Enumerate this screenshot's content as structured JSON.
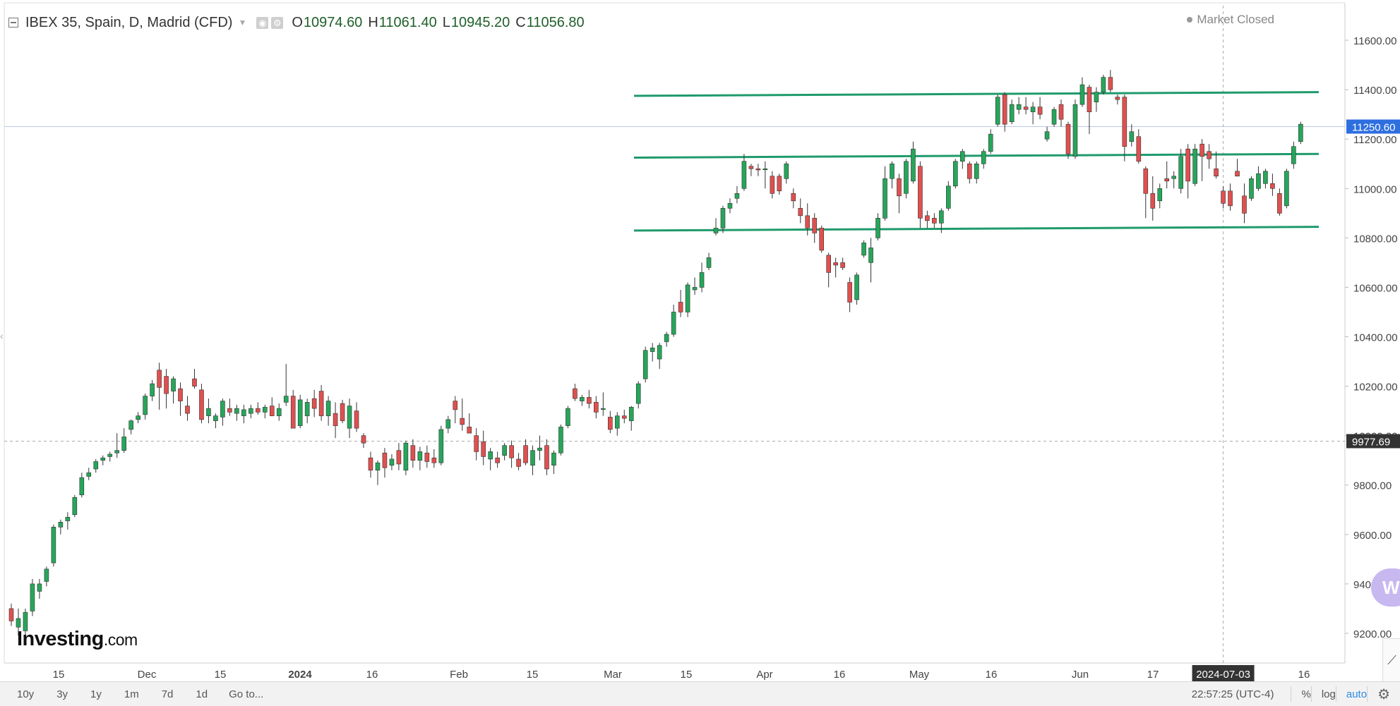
{
  "header": {
    "title": "IBEX 35, Spain, D, Madrid (CFD)",
    "ohlc": [
      {
        "key": "O",
        "value": "10974.60"
      },
      {
        "key": "H",
        "value": "11061.40"
      },
      {
        "key": "L",
        "value": "10945.20"
      },
      {
        "key": "C",
        "value": "11056.80"
      }
    ],
    "market_status": "Market Closed"
  },
  "colors": {
    "up": "#26a65b",
    "down": "#e0504f",
    "trend_line": "#1f9a6c",
    "last_price_label": "#2e6fe0",
    "crosshair_label": "#333333",
    "grid": "#eeeeee"
  },
  "chart_data": {
    "type": "candlestick",
    "ylim": [
      9080,
      11740
    ],
    "y_ticks": [
      "11600.00",
      "11400.00",
      "11200.00",
      "11000.00",
      "10800.00",
      "10600.00",
      "10400.00",
      "10200.00",
      "10000.00",
      "9800.00",
      "9600.00",
      "9400.00",
      "9200.00"
    ],
    "x_ticks": [
      "15",
      "Dec",
      "15",
      "2024",
      "16",
      "Feb",
      "15",
      "Mar",
      "15",
      "Apr",
      "16",
      "May",
      "16",
      "Jun",
      "17",
      "2024-07-03",
      "16"
    ],
    "last_price": "11250.60",
    "crosshair_price": "9977.69",
    "crosshair_date": "2024-07-03",
    "resistance_lines": [
      {
        "from": 11375,
        "to": 11390
      },
      {
        "from": 11125,
        "to": 11140
      },
      {
        "from": 10830,
        "to": 10845
      }
    ],
    "candles": [
      {
        "o": 9300,
        "h": 9320,
        "l": 9230,
        "c": 9250
      },
      {
        "o": 9225,
        "h": 9300,
        "l": 9190,
        "c": 9260
      },
      {
        "o": 9210,
        "h": 9300,
        "l": 9180,
        "c": 9285
      },
      {
        "o": 9290,
        "h": 9420,
        "l": 9270,
        "c": 9400
      },
      {
        "o": 9370,
        "h": 9420,
        "l": 9340,
        "c": 9400
      },
      {
        "o": 9410,
        "h": 9470,
        "l": 9390,
        "c": 9460
      },
      {
        "o": 9485,
        "h": 9640,
        "l": 9470,
        "c": 9630
      },
      {
        "o": 9630,
        "h": 9660,
        "l": 9600,
        "c": 9650
      },
      {
        "o": 9655,
        "h": 9690,
        "l": 9620,
        "c": 9670
      },
      {
        "o": 9680,
        "h": 9760,
        "l": 9670,
        "c": 9750
      },
      {
        "o": 9760,
        "h": 9850,
        "l": 9750,
        "c": 9830
      },
      {
        "o": 9835,
        "h": 9870,
        "l": 9820,
        "c": 9850
      },
      {
        "o": 9865,
        "h": 9905,
        "l": 9850,
        "c": 9895
      },
      {
        "o": 9900,
        "h": 9920,
        "l": 9880,
        "c": 9910
      },
      {
        "o": 9915,
        "h": 9935,
        "l": 9895,
        "c": 9925
      },
      {
        "o": 9930,
        "h": 10010,
        "l": 9910,
        "c": 9940
      },
      {
        "o": 9940,
        "h": 10030,
        "l": 9930,
        "c": 9995
      },
      {
        "o": 10025,
        "h": 10065,
        "l": 10005,
        "c": 10060
      },
      {
        "o": 10065,
        "h": 10095,
        "l": 10050,
        "c": 10080
      },
      {
        "o": 10085,
        "h": 10170,
        "l": 10065,
        "c": 10160
      },
      {
        "o": 10160,
        "h": 10225,
        "l": 10140,
        "c": 10210
      },
      {
        "o": 10265,
        "h": 10295,
        "l": 10105,
        "c": 10195
      },
      {
        "o": 10240,
        "h": 10270,
        "l": 10110,
        "c": 10170
      },
      {
        "o": 10180,
        "h": 10240,
        "l": 10130,
        "c": 10230
      },
      {
        "o": 10190,
        "h": 10215,
        "l": 10080,
        "c": 10140
      },
      {
        "o": 10120,
        "h": 10160,
        "l": 10060,
        "c": 10090
      },
      {
        "o": 10230,
        "h": 10270,
        "l": 10190,
        "c": 10200
      },
      {
        "o": 10185,
        "h": 10210,
        "l": 10050,
        "c": 10065
      },
      {
        "o": 10080,
        "h": 10150,
        "l": 10050,
        "c": 10110
      },
      {
        "o": 10060,
        "h": 10090,
        "l": 10030,
        "c": 10080
      },
      {
        "o": 10075,
        "h": 10150,
        "l": 10040,
        "c": 10140
      },
      {
        "o": 10110,
        "h": 10150,
        "l": 10080,
        "c": 10095
      },
      {
        "o": 10090,
        "h": 10125,
        "l": 10060,
        "c": 10110
      },
      {
        "o": 10080,
        "h": 10125,
        "l": 10050,
        "c": 10105
      },
      {
        "o": 10090,
        "h": 10125,
        "l": 10070,
        "c": 10110
      },
      {
        "o": 10110,
        "h": 10135,
        "l": 10085,
        "c": 10095
      },
      {
        "o": 10095,
        "h": 10125,
        "l": 10070,
        "c": 10115
      },
      {
        "o": 10120,
        "h": 10155,
        "l": 10080,
        "c": 10080
      },
      {
        "o": 10080,
        "h": 10130,
        "l": 10060,
        "c": 10110
      },
      {
        "o": 10135,
        "h": 10290,
        "l": 10120,
        "c": 10160
      },
      {
        "o": 10160,
        "h": 10185,
        "l": 10040,
        "c": 10030
      },
      {
        "o": 10040,
        "h": 10165,
        "l": 10030,
        "c": 10145
      },
      {
        "o": 10080,
        "h": 10150,
        "l": 10050,
        "c": 10135
      },
      {
        "o": 10150,
        "h": 10185,
        "l": 10075,
        "c": 10110
      },
      {
        "o": 10180,
        "h": 10205,
        "l": 10060,
        "c": 10080
      },
      {
        "o": 10080,
        "h": 10160,
        "l": 10040,
        "c": 10140
      },
      {
        "o": 10090,
        "h": 10135,
        "l": 9990,
        "c": 10040
      },
      {
        "o": 10130,
        "h": 10145,
        "l": 10050,
        "c": 10060
      },
      {
        "o": 10030,
        "h": 10150,
        "l": 9990,
        "c": 10120
      },
      {
        "o": 10100,
        "h": 10135,
        "l": 10015,
        "c": 10030
      },
      {
        "o": 10000,
        "h": 10010,
        "l": 9950,
        "c": 9970
      },
      {
        "o": 9910,
        "h": 9935,
        "l": 9830,
        "c": 9860
      },
      {
        "o": 9860,
        "h": 9900,
        "l": 9800,
        "c": 9890
      },
      {
        "o": 9930,
        "h": 9950,
        "l": 9830,
        "c": 9870
      },
      {
        "o": 9880,
        "h": 9925,
        "l": 9860,
        "c": 9905
      },
      {
        "o": 9940,
        "h": 9970,
        "l": 9860,
        "c": 9885
      },
      {
        "o": 9860,
        "h": 9980,
        "l": 9840,
        "c": 9970
      },
      {
        "o": 9960,
        "h": 9985,
        "l": 9870,
        "c": 9900
      },
      {
        "o": 9900,
        "h": 9955,
        "l": 9860,
        "c": 9935
      },
      {
        "o": 9930,
        "h": 9960,
        "l": 9870,
        "c": 9895
      },
      {
        "o": 9910,
        "h": 9945,
        "l": 9870,
        "c": 9890
      },
      {
        "o": 9890,
        "h": 10040,
        "l": 9880,
        "c": 10025
      },
      {
        "o": 10030,
        "h": 10080,
        "l": 10010,
        "c": 10065
      },
      {
        "o": 10140,
        "h": 10160,
        "l": 10050,
        "c": 10105
      },
      {
        "o": 10070,
        "h": 10150,
        "l": 10020,
        "c": 10045
      },
      {
        "o": 10035,
        "h": 10090,
        "l": 10010,
        "c": 10010
      },
      {
        "o": 10000,
        "h": 10030,
        "l": 9900,
        "c": 9935
      },
      {
        "o": 9975,
        "h": 10020,
        "l": 9880,
        "c": 9915
      },
      {
        "o": 9905,
        "h": 9950,
        "l": 9860,
        "c": 9935
      },
      {
        "o": 9910,
        "h": 9935,
        "l": 9870,
        "c": 9890
      },
      {
        "o": 9920,
        "h": 9970,
        "l": 9900,
        "c": 9960
      },
      {
        "o": 9960,
        "h": 9980,
        "l": 9870,
        "c": 9910
      },
      {
        "o": 9905,
        "h": 9930,
        "l": 9860,
        "c": 9875
      },
      {
        "o": 9960,
        "h": 9985,
        "l": 9880,
        "c": 9890
      },
      {
        "o": 9880,
        "h": 9960,
        "l": 9840,
        "c": 9940
      },
      {
        "o": 9940,
        "h": 10000,
        "l": 9900,
        "c": 9950
      },
      {
        "o": 9960,
        "h": 9985,
        "l": 9840,
        "c": 9865
      },
      {
        "o": 9880,
        "h": 9940,
        "l": 9845,
        "c": 9930
      },
      {
        "o": 9930,
        "h": 10045,
        "l": 9920,
        "c": 10035
      },
      {
        "o": 10040,
        "h": 10120,
        "l": 10030,
        "c": 10110
      },
      {
        "o": 10190,
        "h": 10210,
        "l": 10140,
        "c": 10150
      },
      {
        "o": 10140,
        "h": 10165,
        "l": 10120,
        "c": 10155
      },
      {
        "o": 10155,
        "h": 10185,
        "l": 10110,
        "c": 10130
      },
      {
        "o": 10135,
        "h": 10160,
        "l": 10070,
        "c": 10095
      },
      {
        "o": 10110,
        "h": 10175,
        "l": 10080,
        "c": 10110
      },
      {
        "o": 10075,
        "h": 10100,
        "l": 10010,
        "c": 10025
      },
      {
        "o": 10030,
        "h": 10095,
        "l": 10000,
        "c": 10080
      },
      {
        "o": 10080,
        "h": 10105,
        "l": 10050,
        "c": 10070
      },
      {
        "o": 10060,
        "h": 10120,
        "l": 10020,
        "c": 10115
      },
      {
        "o": 10130,
        "h": 10220,
        "l": 10110,
        "c": 10210
      },
      {
        "o": 10230,
        "h": 10360,
        "l": 10215,
        "c": 10345
      },
      {
        "o": 10340,
        "h": 10375,
        "l": 10300,
        "c": 10355
      },
      {
        "o": 10310,
        "h": 10375,
        "l": 10270,
        "c": 10365
      },
      {
        "o": 10380,
        "h": 10420,
        "l": 10360,
        "c": 10410
      },
      {
        "o": 10410,
        "h": 10530,
        "l": 10400,
        "c": 10500
      },
      {
        "o": 10540,
        "h": 10590,
        "l": 10480,
        "c": 10500
      },
      {
        "o": 10500,
        "h": 10620,
        "l": 10480,
        "c": 10610
      },
      {
        "o": 10590,
        "h": 10640,
        "l": 10570,
        "c": 10600
      },
      {
        "o": 10600,
        "h": 10700,
        "l": 10580,
        "c": 10660
      },
      {
        "o": 10680,
        "h": 10740,
        "l": 10670,
        "c": 10720
      },
      {
        "o": 10820,
        "h": 10880,
        "l": 10810,
        "c": 10840
      },
      {
        "o": 10840,
        "h": 10930,
        "l": 10820,
        "c": 10920
      },
      {
        "o": 10920,
        "h": 10960,
        "l": 10900,
        "c": 10940
      },
      {
        "o": 10960,
        "h": 11010,
        "l": 10940,
        "c": 10980
      },
      {
        "o": 11000,
        "h": 11140,
        "l": 10990,
        "c": 11110
      },
      {
        "o": 11090,
        "h": 11100,
        "l": 11050,
        "c": 11080
      },
      {
        "o": 11080,
        "h": 11100,
        "l": 11050,
        "c": 11075
      },
      {
        "o": 11080,
        "h": 11110,
        "l": 11000,
        "c": 11080
      },
      {
        "o": 11050,
        "h": 11070,
        "l": 10960,
        "c": 10980
      },
      {
        "o": 11050,
        "h": 11060,
        "l": 10975,
        "c": 10990
      },
      {
        "o": 11040,
        "h": 11110,
        "l": 11020,
        "c": 11100
      },
      {
        "o": 10980,
        "h": 11000,
        "l": 10920,
        "c": 10950
      },
      {
        "o": 10920,
        "h": 10960,
        "l": 10860,
        "c": 10890
      },
      {
        "o": 10890,
        "h": 10940,
        "l": 10810,
        "c": 10840
      },
      {
        "o": 10880,
        "h": 10900,
        "l": 10780,
        "c": 10820
      },
      {
        "o": 10840,
        "h": 10850,
        "l": 10740,
        "c": 10750
      },
      {
        "o": 10730,
        "h": 10740,
        "l": 10600,
        "c": 10660
      },
      {
        "o": 10700,
        "h": 10720,
        "l": 10640,
        "c": 10690
      },
      {
        "o": 10700,
        "h": 10720,
        "l": 10670,
        "c": 10680
      },
      {
        "o": 10620,
        "h": 10640,
        "l": 10500,
        "c": 10540
      },
      {
        "o": 10550,
        "h": 10660,
        "l": 10530,
        "c": 10650
      },
      {
        "o": 10730,
        "h": 10790,
        "l": 10720,
        "c": 10780
      },
      {
        "o": 10700,
        "h": 10800,
        "l": 10620,
        "c": 10760
      },
      {
        "o": 10800,
        "h": 10900,
        "l": 10790,
        "c": 10880
      },
      {
        "o": 10880,
        "h": 11090,
        "l": 10870,
        "c": 11040
      },
      {
        "o": 11040,
        "h": 11110,
        "l": 11000,
        "c": 11100
      },
      {
        "o": 11040,
        "h": 11060,
        "l": 10900,
        "c": 10970
      },
      {
        "o": 10980,
        "h": 11120,
        "l": 10960,
        "c": 11110
      },
      {
        "o": 11030,
        "h": 11190,
        "l": 11020,
        "c": 11160
      },
      {
        "o": 11090,
        "h": 11110,
        "l": 10840,
        "c": 10880
      },
      {
        "o": 10890,
        "h": 10910,
        "l": 10840,
        "c": 10870
      },
      {
        "o": 10880,
        "h": 10900,
        "l": 10840,
        "c": 10860
      },
      {
        "o": 10860,
        "h": 10920,
        "l": 10820,
        "c": 10910
      },
      {
        "o": 10920,
        "h": 11030,
        "l": 10910,
        "c": 11010
      },
      {
        "o": 11010,
        "h": 11120,
        "l": 11000,
        "c": 11110
      },
      {
        "o": 11110,
        "h": 11160,
        "l": 11080,
        "c": 11150
      },
      {
        "o": 11100,
        "h": 11110,
        "l": 11020,
        "c": 11040
      },
      {
        "o": 11040,
        "h": 11110,
        "l": 11020,
        "c": 11100
      },
      {
        "o": 11100,
        "h": 11160,
        "l": 11080,
        "c": 11150
      },
      {
        "o": 11150,
        "h": 11240,
        "l": 11140,
        "c": 11220
      },
      {
        "o": 11260,
        "h": 11380,
        "l": 11250,
        "c": 11370
      },
      {
        "o": 11380,
        "h": 11390,
        "l": 11230,
        "c": 11260
      },
      {
        "o": 11270,
        "h": 11360,
        "l": 11260,
        "c": 11340
      },
      {
        "o": 11320,
        "h": 11370,
        "l": 11300,
        "c": 11340
      },
      {
        "o": 11330,
        "h": 11370,
        "l": 11300,
        "c": 11320
      },
      {
        "o": 11310,
        "h": 11350,
        "l": 11260,
        "c": 11330
      },
      {
        "o": 11330,
        "h": 11370,
        "l": 11280,
        "c": 11300
      },
      {
        "o": 11200,
        "h": 11250,
        "l": 11190,
        "c": 11230
      },
      {
        "o": 11260,
        "h": 11330,
        "l": 11250,
        "c": 11320
      },
      {
        "o": 11340,
        "h": 11360,
        "l": 11250,
        "c": 11280
      },
      {
        "o": 11260,
        "h": 11270,
        "l": 11120,
        "c": 11140
      },
      {
        "o": 11130,
        "h": 11360,
        "l": 11120,
        "c": 11340
      },
      {
        "o": 11340,
        "h": 11450,
        "l": 11330,
        "c": 11420
      },
      {
        "o": 11410,
        "h": 11420,
        "l": 11220,
        "c": 11310
      },
      {
        "o": 11350,
        "h": 11410,
        "l": 11310,
        "c": 11390
      },
      {
        "o": 11390,
        "h": 11460,
        "l": 11380,
        "c": 11450
      },
      {
        "o": 11450,
        "h": 11480,
        "l": 11390,
        "c": 11400
      },
      {
        "o": 11370,
        "h": 11380,
        "l": 11340,
        "c": 11360
      },
      {
        "o": 11370,
        "h": 11380,
        "l": 11110,
        "c": 11170
      },
      {
        "o": 11190,
        "h": 11260,
        "l": 11170,
        "c": 11230
      },
      {
        "o": 11210,
        "h": 11240,
        "l": 11100,
        "c": 11110
      },
      {
        "o": 11080,
        "h": 11090,
        "l": 10880,
        "c": 10980
      },
      {
        "o": 10980,
        "h": 11050,
        "l": 10870,
        "c": 10920
      },
      {
        "o": 10950,
        "h": 11020,
        "l": 10920,
        "c": 11000
      },
      {
        "o": 11040,
        "h": 11110,
        "l": 11000,
        "c": 11030
      },
      {
        "o": 11040,
        "h": 11070,
        "l": 11000,
        "c": 11050
      },
      {
        "o": 11000,
        "h": 11160,
        "l": 10980,
        "c": 11130
      },
      {
        "o": 11160,
        "h": 11180,
        "l": 10960,
        "c": 11030
      },
      {
        "o": 11020,
        "h": 11180,
        "l": 11010,
        "c": 11160
      },
      {
        "o": 11180,
        "h": 11200,
        "l": 11030,
        "c": 11130
      },
      {
        "o": 11150,
        "h": 11180,
        "l": 11080,
        "c": 11120
      },
      {
        "o": 11080,
        "h": 11150,
        "l": 11040,
        "c": 11050
      },
      {
        "o": 10990,
        "h": 11010,
        "l": 10920,
        "c": 10940
      },
      {
        "o": 10990,
        "h": 11020,
        "l": 10910,
        "c": 10930
      },
      {
        "o": 11070,
        "h": 11120,
        "l": 11050,
        "c": 11050
      },
      {
        "o": 10970,
        "h": 11020,
        "l": 10860,
        "c": 10900
      },
      {
        "o": 10960,
        "h": 11050,
        "l": 10950,
        "c": 11040
      },
      {
        "o": 11000,
        "h": 11090,
        "l": 10990,
        "c": 11060
      },
      {
        "o": 11020,
        "h": 11080,
        "l": 11000,
        "c": 11070
      },
      {
        "o": 11020,
        "h": 11060,
        "l": 10970,
        "c": 11000
      },
      {
        "o": 10980,
        "h": 11000,
        "l": 10890,
        "c": 10900
      },
      {
        "o": 10930,
        "h": 11080,
        "l": 10920,
        "c": 11070
      },
      {
        "o": 11100,
        "h": 11190,
        "l": 11080,
        "c": 11170
      },
      {
        "o": 11190,
        "h": 11270,
        "l": 11180,
        "c": 11260
      }
    ]
  },
  "bottom_bar": {
    "ranges": [
      "10y",
      "3y",
      "1y",
      "1m",
      "7d",
      "1d"
    ],
    "goto": "Go to...",
    "time": "22:57:25 (UTC-4)",
    "percent": "%",
    "log": "log",
    "auto": "auto"
  },
  "branding": {
    "logo": "Investing",
    "logo_suffix": ".com"
  }
}
